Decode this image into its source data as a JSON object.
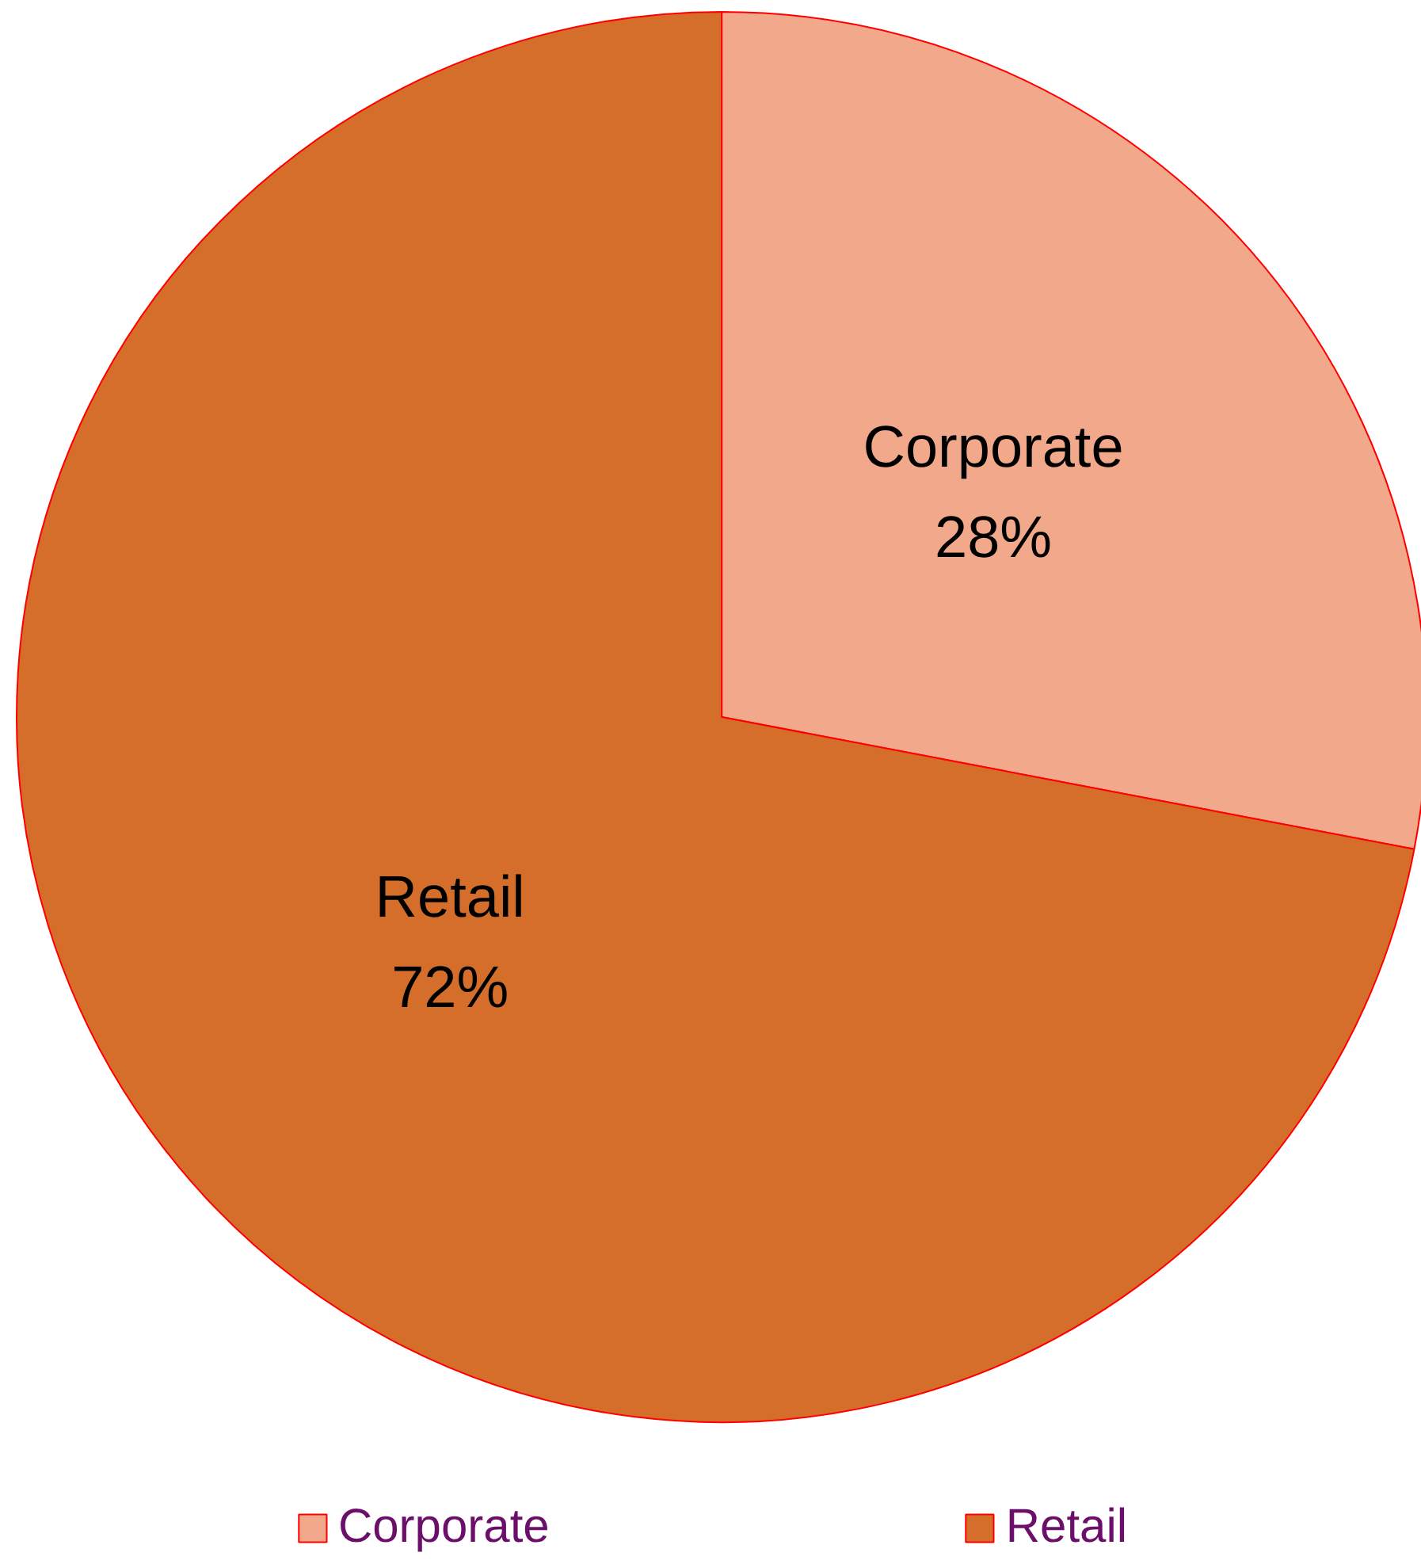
{
  "chart_data": {
    "type": "pie",
    "categories": [
      "Corporate",
      "Retail"
    ],
    "values": [
      28,
      72
    ],
    "colors": [
      "#f2a88a",
      "#d46e2a"
    ],
    "value_labels": [
      "28%",
      "72%"
    ],
    "legend": "bottom"
  }
}
